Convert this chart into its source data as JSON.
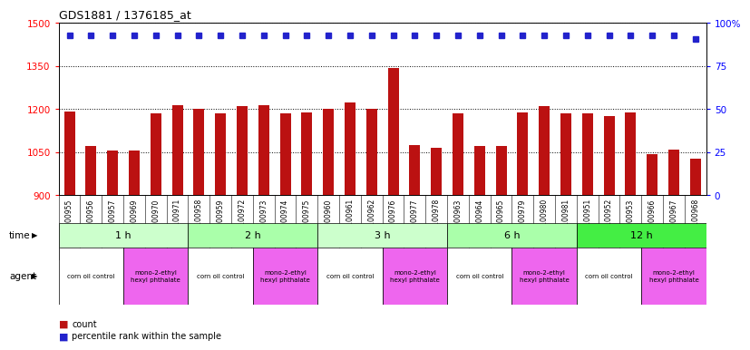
{
  "title": "GDS1881 / 1376185_at",
  "samples": [
    "GSM100955",
    "GSM100956",
    "GSM100957",
    "GSM100969",
    "GSM100970",
    "GSM100971",
    "GSM100958",
    "GSM100959",
    "GSM100972",
    "GSM100973",
    "GSM100974",
    "GSM100975",
    "GSM100960",
    "GSM100961",
    "GSM100962",
    "GSM100976",
    "GSM100977",
    "GSM100978",
    "GSM100963",
    "GSM100964",
    "GSM100965",
    "GSM100979",
    "GSM100980",
    "GSM100981",
    "GSM100951",
    "GSM100952",
    "GSM100953",
    "GSM100966",
    "GSM100967",
    "GSM100968"
  ],
  "counts": [
    1192,
    1072,
    1055,
    1055,
    1185,
    1215,
    1200,
    1185,
    1210,
    1215,
    1185,
    1190,
    1200,
    1225,
    1200,
    1345,
    1075,
    1065,
    1185,
    1072,
    1072,
    1190,
    1210,
    1185,
    1185,
    1175,
    1190,
    1042,
    1060,
    1028
  ],
  "percentiles": [
    93,
    93,
    93,
    93,
    93,
    93,
    93,
    93,
    93,
    93,
    93,
    93,
    93,
    93,
    93,
    93,
    93,
    93,
    93,
    93,
    93,
    93,
    93,
    93,
    93,
    93,
    93,
    93,
    93,
    91
  ],
  "bar_color": "#bb1111",
  "dot_color": "#2222cc",
  "ylim_left": [
    900,
    1500
  ],
  "ylim_right": [
    0,
    100
  ],
  "yticks_left": [
    900,
    1050,
    1200,
    1350,
    1500
  ],
  "yticks_right": [
    0,
    25,
    50,
    75,
    100
  ],
  "time_groups": [
    {
      "label": "1 h",
      "start": 0,
      "end": 6,
      "color": "#ccffcc"
    },
    {
      "label": "2 h",
      "start": 6,
      "end": 12,
      "color": "#aaffaa"
    },
    {
      "label": "3 h",
      "start": 12,
      "end": 18,
      "color": "#ccffcc"
    },
    {
      "label": "6 h",
      "start": 18,
      "end": 24,
      "color": "#aaffaa"
    },
    {
      "label": "12 h",
      "start": 24,
      "end": 30,
      "color": "#44ee44"
    }
  ],
  "agent_groups": [
    {
      "label": "corn oil control",
      "start": 0,
      "end": 3,
      "color": "#ffffff"
    },
    {
      "label": "mono-2-ethyl\nhexyl phthalate",
      "start": 3,
      "end": 6,
      "color": "#ee66ee"
    },
    {
      "label": "corn oil control",
      "start": 6,
      "end": 9,
      "color": "#ffffff"
    },
    {
      "label": "mono-2-ethyl\nhexyl phthalate",
      "start": 9,
      "end": 12,
      "color": "#ee66ee"
    },
    {
      "label": "corn oil control",
      "start": 12,
      "end": 15,
      "color": "#ffffff"
    },
    {
      "label": "mono-2-ethyl\nhexyl phthalate",
      "start": 15,
      "end": 18,
      "color": "#ee66ee"
    },
    {
      "label": "corn oil control",
      "start": 18,
      "end": 21,
      "color": "#ffffff"
    },
    {
      "label": "mono-2-ethyl\nhexyl phthalate",
      "start": 21,
      "end": 24,
      "color": "#ee66ee"
    },
    {
      "label": "corn oil control",
      "start": 24,
      "end": 27,
      "color": "#ffffff"
    },
    {
      "label": "mono-2-ethyl\nhexyl phthalate",
      "start": 27,
      "end": 30,
      "color": "#ee66ee"
    }
  ],
  "n_samples": 30,
  "background_color": "#ffffff",
  "bar_width": 0.5,
  "xtick_bg": "#dddddd"
}
